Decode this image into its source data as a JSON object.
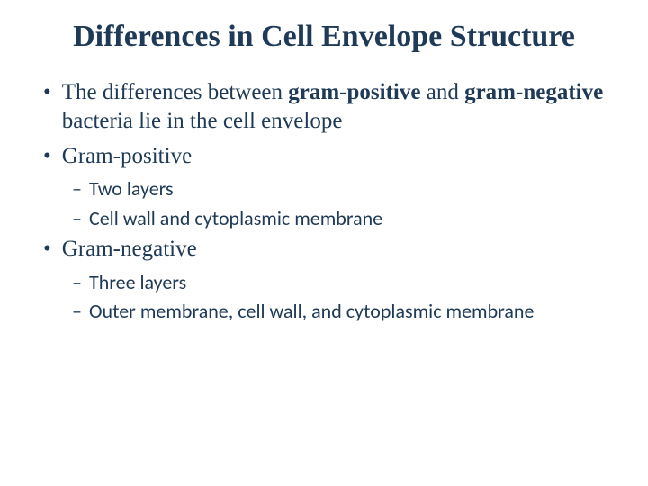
{
  "title": "Differences in Cell Envelope Structure",
  "colors": {
    "text": "#1f3a56",
    "background": "#ffffff"
  },
  "typography": {
    "title_fontsize": 34,
    "bullet_l1_fontsize": 25,
    "bullet_l2_fontsize": 22,
    "title_font": "Georgia serif",
    "l1_font": "Georgia serif",
    "l2_font": "Calibri sans-serif"
  },
  "bullets": {
    "b1_pre": "The differences between ",
    "b1_bold1": "gram-positive",
    "b1_mid": " and ",
    "b1_bold2": "gram-negative",
    "b1_post": " bacteria lie in the cell envelope",
    "b2": "Gram-positive",
    "b2_sub1": "Two layers",
    "b2_sub2": "Cell wall and cytoplasmic membrane",
    "b3": "Gram-negative",
    "b3_sub1": "Three layers",
    "b3_sub2": "Outer membrane, cell wall, and cytoplasmic membrane"
  },
  "markers": {
    "l1": "•",
    "l2": "–"
  }
}
